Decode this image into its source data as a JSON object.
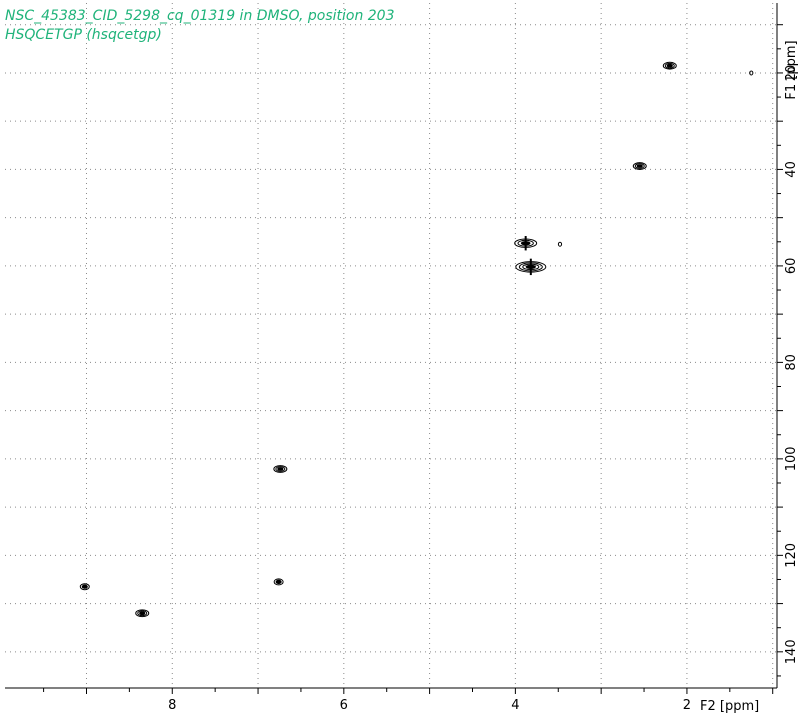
{
  "title_color": "#1fb37a",
  "peak_color": "#000000",
  "grid_color": "#8a8a8a",
  "chart_data": {
    "type": "scatter",
    "subtype": "2D NMR HSQC contour plot",
    "title": "NSC_45383_CID_5298_cq_01319 in DMSO, position 203",
    "subtitle": "HSQCETGP (hsqcetgp)",
    "xlabel": "F2 [ppm]",
    "ylabel": "F1 [ppm]",
    "x_reversed": true,
    "y_reversed": true,
    "xlim": [
      9.95,
      0.95
    ],
    "ylim": [
      5.5,
      147.5
    ],
    "x_ticks": [
      8,
      6,
      4,
      2
    ],
    "y_ticks": [
      20,
      40,
      60,
      80,
      100,
      120,
      140
    ],
    "grid": true,
    "peaks": [
      {
        "x": 2.2,
        "y": 18.5,
        "size": "medium"
      },
      {
        "x": 1.25,
        "y": 20.0,
        "size": "tiny"
      },
      {
        "x": 2.55,
        "y": 39.3,
        "size": "medium"
      },
      {
        "x": 3.88,
        "y": 55.3,
        "size": "large"
      },
      {
        "x": 3.48,
        "y": 55.5,
        "size": "tiny"
      },
      {
        "x": 3.82,
        "y": 60.2,
        "size": "xlarge"
      },
      {
        "x": 6.74,
        "y": 102.1,
        "size": "medium"
      },
      {
        "x": 6.76,
        "y": 125.5,
        "size": "small"
      },
      {
        "x": 9.02,
        "y": 126.5,
        "size": "small"
      },
      {
        "x": 8.35,
        "y": 132.0,
        "size": "medium"
      }
    ]
  }
}
